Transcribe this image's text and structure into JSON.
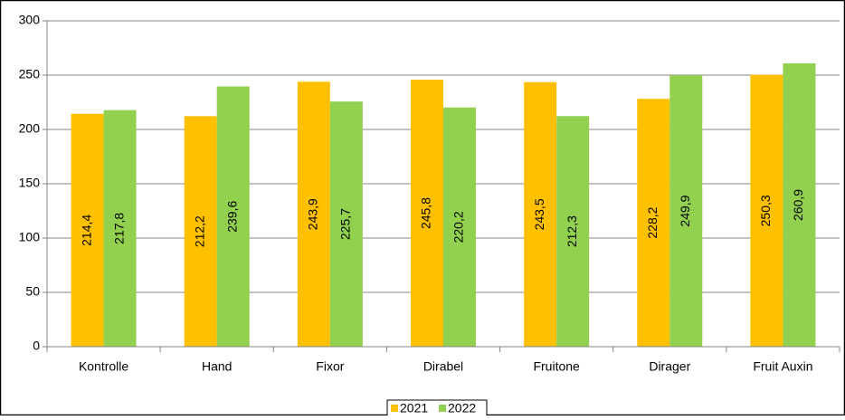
{
  "chart_data": {
    "type": "bar",
    "categories": [
      "Kontrolle",
      "Hand",
      "Fixor",
      "Dirabel",
      "Fruitone",
      "Dirager",
      "Fruit Auxin"
    ],
    "series": [
      {
        "name": "2021",
        "color": "#ffc000",
        "values": [
          214.4,
          212.2,
          243.9,
          245.8,
          243.5,
          228.2,
          250.3
        ],
        "value_labels": [
          "214,4",
          "212,2",
          "243,9",
          "245,8",
          "243,5",
          "228,2",
          "250,3"
        ]
      },
      {
        "name": "2022",
        "color": "#92d050",
        "values": [
          217.8,
          239.6,
          225.7,
          220.2,
          212.3,
          249.9,
          260.9
        ],
        "value_labels": [
          "217,8",
          "239,6",
          "225,7",
          "220,2",
          "212,3",
          "249,9",
          "260,9"
        ]
      }
    ],
    "ylim": [
      0,
      300
    ],
    "yticks": [
      0,
      50,
      100,
      150,
      200,
      250,
      300
    ],
    "grid": true,
    "legend": "bottom"
  }
}
